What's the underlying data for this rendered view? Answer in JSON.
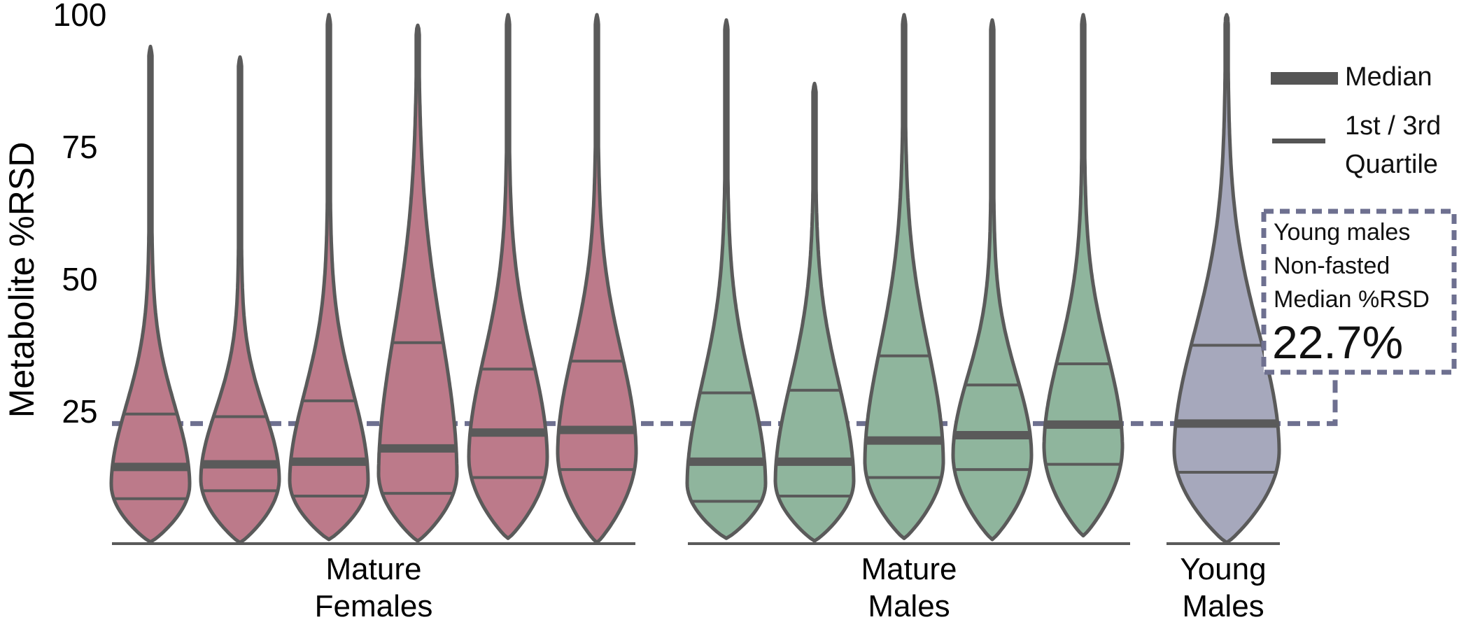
{
  "chart_data": {
    "type": "violin",
    "ylabel": "Metabolite %RSD",
    "ylim": [
      0,
      100
    ],
    "yticks": [
      25,
      50,
      75,
      100
    ],
    "groups": [
      {
        "label_lines": [
          "Mature",
          "Females"
        ],
        "color": "#bc7a8a",
        "violins": [
          {
            "min": 0.3,
            "max": 94,
            "q1": 8.5,
            "median": 14.5,
            "q3": 24.5
          },
          {
            "min": 0.2,
            "max": 92,
            "q1": 10.0,
            "median": 15.0,
            "q3": 24.0
          },
          {
            "min": 0.8,
            "max": 100,
            "q1": 9.0,
            "median": 15.5,
            "q3": 27.0
          },
          {
            "min": 0.5,
            "max": 98,
            "q1": 9.5,
            "median": 18.0,
            "q3": 38.0
          },
          {
            "min": 1.0,
            "max": 100,
            "q1": 12.5,
            "median": 21.0,
            "q3": 33.0
          },
          {
            "min": 0.2,
            "max": 100,
            "q1": 14.0,
            "median": 21.5,
            "q3": 34.5
          }
        ]
      },
      {
        "label_lines": [
          "Mature",
          "Males"
        ],
        "color": "#8fb59d",
        "violins": [
          {
            "min": 1.0,
            "max": 99,
            "q1": 8.0,
            "median": 15.5,
            "q3": 28.5
          },
          {
            "min": 0.5,
            "max": 87,
            "q1": 9.0,
            "median": 15.5,
            "q3": 29.0
          },
          {
            "min": 1.0,
            "max": 100,
            "q1": 12.5,
            "median": 19.5,
            "q3": 35.5
          },
          {
            "min": 0.8,
            "max": 99,
            "q1": 14.0,
            "median": 20.5,
            "q3": 30.0
          },
          {
            "min": 1.5,
            "max": 100,
            "q1": 15.0,
            "median": 22.5,
            "q3": 34.0
          }
        ]
      },
      {
        "label_lines": [
          "Young",
          "Males"
        ],
        "color": "#a6a8bc",
        "violins": [
          {
            "min": 0.2,
            "max": 100,
            "q1": 13.5,
            "median": 22.7,
            "q3": 37.5
          }
        ]
      }
    ],
    "reference_line": {
      "value": 22.7
    }
  },
  "legend": {
    "median_label": "Median",
    "quartile_label_lines": [
      "1st / 3rd",
      "Quartile"
    ]
  },
  "annotation": {
    "lines": [
      "Young males",
      "Non-fasted",
      "Median %RSD"
    ],
    "value_text": "22.7%"
  }
}
